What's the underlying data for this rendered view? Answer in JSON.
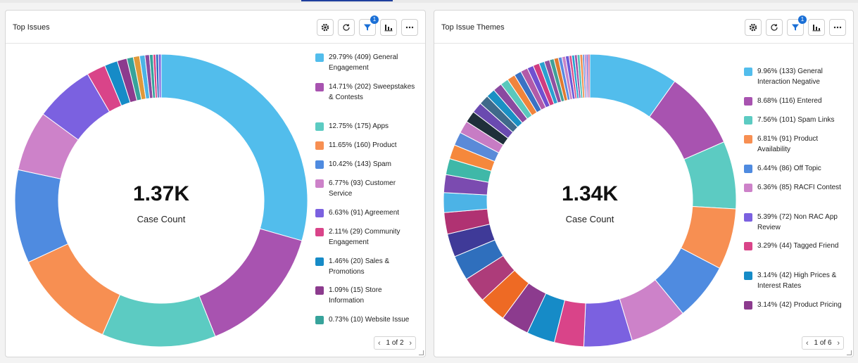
{
  "panels": [
    {
      "title": "Top Issues",
      "filter_badge": "1",
      "center_value": "1.37K",
      "center_label": "Case Count",
      "pager": "1 of 2",
      "legend": [
        {
          "label": "29.79% (409) General Engagement",
          "color": "#52bdec"
        },
        {
          "label": "14.71% (202) Sweepstakes & Contests",
          "color": "#a853b0"
        },
        {
          "label": "12.75% (175) Apps",
          "color": "#5ccbc2"
        },
        {
          "label": "11.65% (160) Product",
          "color": "#f78f52"
        },
        {
          "label": "10.42% (143) Spam",
          "color": "#4f8be0"
        },
        {
          "label": "6.77% (93) Customer Service",
          "color": "#cd82c9"
        },
        {
          "label": "6.63% (91) Agreement",
          "color": "#7b61e0"
        },
        {
          "label": "2.11% (29) Community Engagement",
          "color": "#d94489"
        },
        {
          "label": "1.46% (20) Sales & Promotions",
          "color": "#168bc7"
        },
        {
          "label": "1.09% (15) Store Information",
          "color": "#8c3b8e"
        },
        {
          "label": "0.73% (10) Website Issue",
          "color": "#37a39b"
        }
      ]
    },
    {
      "title": "Top Issue Themes",
      "filter_badge": "1",
      "center_value": "1.34K",
      "center_label": "Case Count",
      "pager": "1 of 6",
      "legend": [
        {
          "label": "9.96% (133) General Interaction Negative",
          "color": "#52bdec"
        },
        {
          "label": "8.68% (116) Entered",
          "color": "#a853b0"
        },
        {
          "label": "7.56% (101) Spam Links",
          "color": "#5ccbc2"
        },
        {
          "label": "6.81% (91) Product Availability",
          "color": "#f78f52"
        },
        {
          "label": "6.44% (86) Off Topic",
          "color": "#4f8be0"
        },
        {
          "label": "6.36% (85) RACFI Contest",
          "color": "#cd82c9"
        },
        {
          "label": "5.39% (72) Non RAC App Review",
          "color": "#7b61e0"
        },
        {
          "label": "3.29% (44) Tagged Friend",
          "color": "#d94489"
        },
        {
          "label": "3.14% (42) High Prices & Interest Rates",
          "color": "#168bc7"
        },
        {
          "label": "3.14% (42) Product Pricing",
          "color": "#8c3b8e"
        }
      ]
    }
  ],
  "chart_data": [
    {
      "type": "pie",
      "title": "Top Issues",
      "center": "1.37K Case Count",
      "slices": [
        {
          "label": "General Engagement",
          "percent": 29.79,
          "count": 409
        },
        {
          "label": "Sweepstakes & Contests",
          "percent": 14.71,
          "count": 202
        },
        {
          "label": "Apps",
          "percent": 12.75,
          "count": 175
        },
        {
          "label": "Product",
          "percent": 11.65,
          "count": 160
        },
        {
          "label": "Spam",
          "percent": 10.42,
          "count": 143
        },
        {
          "label": "Customer Service",
          "percent": 6.77,
          "count": 93
        },
        {
          "label": "Agreement",
          "percent": 6.63,
          "count": 91
        },
        {
          "label": "Community Engagement",
          "percent": 2.11,
          "count": 29
        },
        {
          "label": "Sales & Promotions",
          "percent": 1.46,
          "count": 20
        },
        {
          "label": "Store Information",
          "percent": 1.09,
          "count": 15
        },
        {
          "label": "Website Issue",
          "percent": 0.73,
          "count": 10
        }
      ],
      "unlabeled_slices_percent": [
        0.7,
        0.6,
        0.5,
        0.4,
        0.3,
        0.3,
        0.3
      ]
    },
    {
      "type": "pie",
      "title": "Top Issue Themes",
      "center": "1.34K Case Count",
      "slices": [
        {
          "label": "General Interaction Negative",
          "percent": 9.96,
          "count": 133
        },
        {
          "label": "Entered",
          "percent": 8.68,
          "count": 116
        },
        {
          "label": "Spam Links",
          "percent": 7.56,
          "count": 101
        },
        {
          "label": "Product Availability",
          "percent": 6.81,
          "count": 91
        },
        {
          "label": "Off Topic",
          "percent": 6.44,
          "count": 86
        },
        {
          "label": "RACFI Contest",
          "percent": 6.36,
          "count": 85
        },
        {
          "label": "Non RAC App Review",
          "percent": 5.39,
          "count": 72
        },
        {
          "label": "Tagged Friend",
          "percent": 3.29,
          "count": 44
        },
        {
          "label": "High Prices & Interest Rates",
          "percent": 3.14,
          "count": 42
        },
        {
          "label": "Product Pricing",
          "percent": 3.14,
          "count": 42
        }
      ],
      "unlabeled_slices_percent": [
        3.0,
        2.9,
        2.8,
        2.6,
        2.4,
        2.2,
        2.0,
        1.8,
        1.6,
        1.5,
        1.4,
        1.3,
        1.2,
        1.1,
        1.0,
        1.0,
        0.9,
        0.9,
        0.8,
        0.8,
        0.7,
        0.7,
        0.6,
        0.6,
        0.5,
        0.5,
        0.4,
        0.4,
        0.4,
        0.3,
        0.3,
        0.3,
        0.3,
        0.3,
        0.2,
        0.2,
        0.2,
        0.2
      ],
      "unlabeled_colors": [
        "#ee6a24",
        "#ad3c7a",
        "#2f6fbd",
        "#3f3a98",
        "#b03272",
        "#4cb3e6",
        "#7b4bb0",
        "#3fb8a8",
        "#f5883c",
        "#5a8ad8",
        "#c77cc4",
        "#1f2f3a",
        "#6a4ab0",
        "#3f6a8a",
        "#1a90c4",
        "#8a4aa0",
        "#5ac8bd",
        "#f0843c",
        "#3a72c4",
        "#b25aa8",
        "#7050d0",
        "#d03c80",
        "#2aa0d0",
        "#9050a0",
        "#40a098",
        "#e07a30",
        "#5a8ae0",
        "#c884c8",
        "#6a5ad8",
        "#d8508a",
        "#20a0d0",
        "#a050a8",
        "#50c0b8",
        "#f09050",
        "#4a80d8",
        "#c070c0",
        "#6a58d0",
        "#d04888"
      ]
    }
  ],
  "icons": [
    "gear-icon",
    "refresh-icon",
    "filter-icon",
    "bar-chart-icon",
    "more-icon",
    "chevron-left-icon",
    "chevron-right-icon",
    "resize-grip-icon"
  ]
}
